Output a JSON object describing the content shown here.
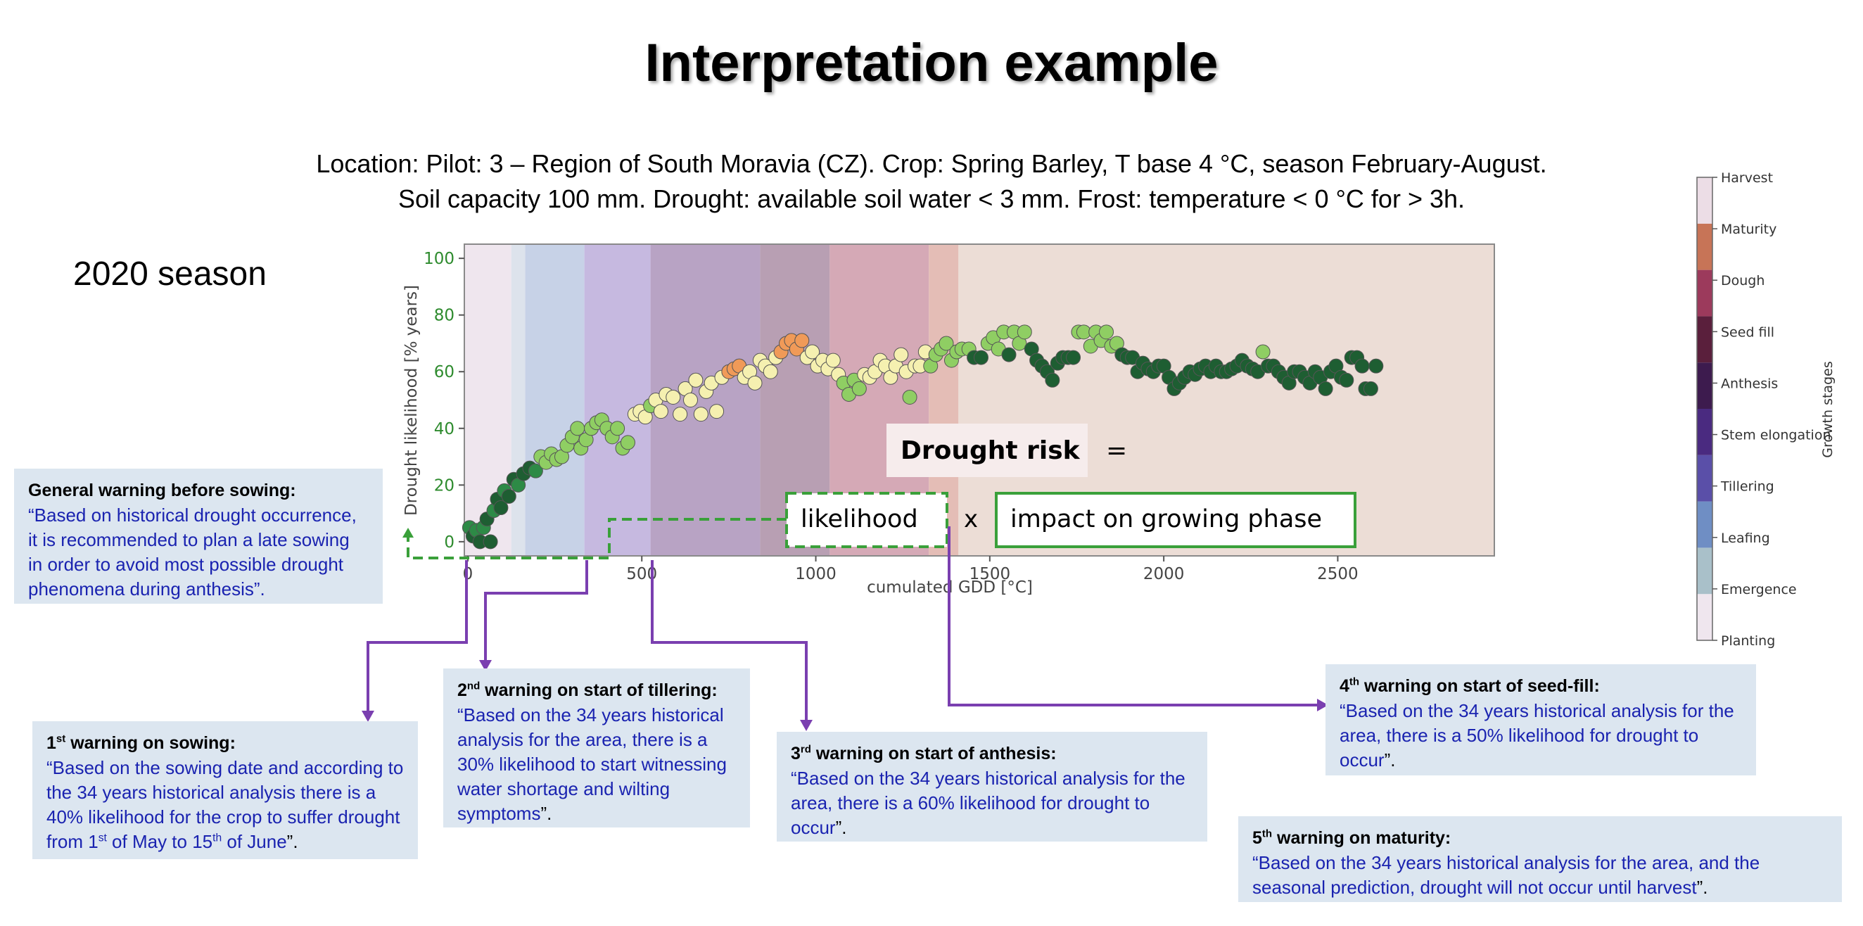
{
  "title": "Interpretation example",
  "subtitle_line1": "Location: Pilot: 3 – Region of South Moravia (CZ). Crop: Spring Barley, T base 4 °C, season February-August.",
  "subtitle_line2": "Soil capacity 100 mm. Drought: available soil water < 3 mm. Frost: temperature < 0 °C for > 3h.",
  "season_label": "2020 season",
  "formula": {
    "drought_risk": "Drought risk",
    "equals": "=",
    "likelihood": "likelihood",
    "times": "x",
    "impact": "impact on growing phase"
  },
  "warnings": {
    "general": {
      "header": "General warning before sowing:",
      "body": "“Based on historical drought occurrence, it is recommended to plan a late sowing in order to avoid most possible drought phenomena during anthesis”."
    },
    "w1": {
      "num": "1",
      "sup": "st",
      "header": " warning on sowing:",
      "body_a": "“Based on the sowing date and according to the 34 years historical analysis there is a 40% likelihood for the crop to suffer drought from 1",
      "sup_b": "st",
      "body_b": " of May to 15",
      "sup_c": "th",
      "body_c": " of June",
      "close": "”."
    },
    "w2": {
      "num": "2",
      "sup": "nd",
      "header": " warning on start of tillering:",
      "body": "“Based on the 34 years historical analysis for the area, there is a 30% likelihood to start witnessing water shortage and wilting symptoms",
      "close": "”."
    },
    "w3": {
      "num": "3",
      "sup": "rd",
      "header": " warning on start of anthesis:",
      "body": "“Based on the 34 years historical analysis for the area, there is a 60% likelihood for drought to occur",
      "close": "”."
    },
    "w4": {
      "num": "4",
      "sup": "th",
      "header": " warning on start of seed-fill:",
      "body": "“Based on the 34 years historical analysis for the area, there is a 50% likelihood for drought to occur",
      "close": "”."
    },
    "w5": {
      "num": "5",
      "sup": "th",
      "header": " warning on maturity:",
      "body": "“Based on the 34 years historical analysis for the area, and the seasonal prediction, drought will not occur until harvest",
      "close": "”."
    }
  },
  "colors": {
    "accent_purple": "#7a3fb0",
    "formula_green": "#3aa03a",
    "body_blue": "#1a23b0",
    "box_bg": "#dce6f0",
    "axis_green": "#2e8b2e"
  },
  "chart_data": {
    "type": "scatter",
    "xlabel": "cumulated GDD [°C]",
    "ylabel": "Drought likelihood [% years]",
    "xlim": [
      -10,
      2950
    ],
    "ylim": [
      -5,
      105
    ],
    "xticks": [
      0,
      500,
      1000,
      1500,
      2000,
      2500
    ],
    "yticks": [
      0,
      20,
      40,
      60,
      80,
      100
    ],
    "stage_bands": [
      {
        "x0": -10,
        "x1": 125,
        "color": "#efe6ee"
      },
      {
        "x0": 125,
        "x1": 165,
        "color": "#dde3ec"
      },
      {
        "x0": 165,
        "x1": 335,
        "color": "#c7d2e7"
      },
      {
        "x0": 335,
        "x1": 525,
        "color": "#c6b9e0"
      },
      {
        "x0": 525,
        "x1": 840,
        "color": "#b8a3c4"
      },
      {
        "x0": 840,
        "x1": 1040,
        "color": "#b89fb3"
      },
      {
        "x0": 1040,
        "x1": 1325,
        "color": "#d5a9b6"
      },
      {
        "x0": 1325,
        "x1": 1410,
        "color": "#e4bdb6"
      },
      {
        "x0": 1410,
        "x1": 2950,
        "color": "#ecddd6"
      }
    ],
    "point_colors": {
      "dark": "#1e5e32",
      "mid": "#2d8a46",
      "light": "#8fce63",
      "pale": "#f5f0b0",
      "orange": "#f09a58"
    },
    "points": [
      {
        "x": 5,
        "y": 5,
        "c": "mid"
      },
      {
        "x": 15,
        "y": 2,
        "c": "dark"
      },
      {
        "x": 25,
        "y": 4,
        "c": "mid"
      },
      {
        "x": 35,
        "y": 0,
        "c": "dark"
      },
      {
        "x": 45,
        "y": 5,
        "c": "mid"
      },
      {
        "x": 55,
        "y": 8,
        "c": "dark"
      },
      {
        "x": 65,
        "y": 0,
        "c": "dark"
      },
      {
        "x": 75,
        "y": 11,
        "c": "mid"
      },
      {
        "x": 85,
        "y": 15,
        "c": "dark"
      },
      {
        "x": 95,
        "y": 12,
        "c": "dark"
      },
      {
        "x": 105,
        "y": 18,
        "c": "mid"
      },
      {
        "x": 118,
        "y": 16,
        "c": "dark"
      },
      {
        "x": 132,
        "y": 22,
        "c": "dark"
      },
      {
        "x": 145,
        "y": 20,
        "c": "mid"
      },
      {
        "x": 160,
        "y": 24,
        "c": "dark"
      },
      {
        "x": 178,
        "y": 26,
        "c": "dark"
      },
      {
        "x": 195,
        "y": 25,
        "c": "mid"
      },
      {
        "x": 210,
        "y": 30,
        "c": "light"
      },
      {
        "x": 225,
        "y": 28,
        "c": "light"
      },
      {
        "x": 240,
        "y": 31,
        "c": "light"
      },
      {
        "x": 255,
        "y": 29,
        "c": "light"
      },
      {
        "x": 270,
        "y": 30,
        "c": "light"
      },
      {
        "x": 285,
        "y": 34,
        "c": "light"
      },
      {
        "x": 300,
        "y": 37,
        "c": "light"
      },
      {
        "x": 315,
        "y": 40,
        "c": "light"
      },
      {
        "x": 325,
        "y": 33,
        "c": "light"
      },
      {
        "x": 340,
        "y": 36,
        "c": "light"
      },
      {
        "x": 355,
        "y": 40,
        "c": "light"
      },
      {
        "x": 370,
        "y": 42,
        "c": "light"
      },
      {
        "x": 385,
        "y": 43,
        "c": "light"
      },
      {
        "x": 400,
        "y": 40,
        "c": "light"
      },
      {
        "x": 415,
        "y": 37,
        "c": "light"
      },
      {
        "x": 430,
        "y": 40,
        "c": "light"
      },
      {
        "x": 445,
        "y": 33,
        "c": "light"
      },
      {
        "x": 460,
        "y": 35,
        "c": "light"
      },
      {
        "x": 480,
        "y": 45,
        "c": "pale"
      },
      {
        "x": 495,
        "y": 46,
        "c": "pale"
      },
      {
        "x": 510,
        "y": 44,
        "c": "pale"
      },
      {
        "x": 525,
        "y": 48,
        "c": "light"
      },
      {
        "x": 540,
        "y": 50,
        "c": "pale"
      },
      {
        "x": 555,
        "y": 46,
        "c": "pale"
      },
      {
        "x": 570,
        "y": 52,
        "c": "pale"
      },
      {
        "x": 590,
        "y": 51,
        "c": "pale"
      },
      {
        "x": 610,
        "y": 45,
        "c": "pale"
      },
      {
        "x": 625,
        "y": 54,
        "c": "pale"
      },
      {
        "x": 640,
        "y": 50,
        "c": "pale"
      },
      {
        "x": 655,
        "y": 57,
        "c": "pale"
      },
      {
        "x": 670,
        "y": 45,
        "c": "pale"
      },
      {
        "x": 685,
        "y": 53,
        "c": "pale"
      },
      {
        "x": 700,
        "y": 56,
        "c": "pale"
      },
      {
        "x": 715,
        "y": 46,
        "c": "pale"
      },
      {
        "x": 730,
        "y": 58,
        "c": "pale"
      },
      {
        "x": 750,
        "y": 60,
        "c": "orange"
      },
      {
        "x": 765,
        "y": 61,
        "c": "orange"
      },
      {
        "x": 780,
        "y": 62,
        "c": "orange"
      },
      {
        "x": 795,
        "y": 58,
        "c": "pale"
      },
      {
        "x": 810,
        "y": 60,
        "c": "pale"
      },
      {
        "x": 825,
        "y": 56,
        "c": "pale"
      },
      {
        "x": 840,
        "y": 64,
        "c": "pale"
      },
      {
        "x": 855,
        "y": 62,
        "c": "pale"
      },
      {
        "x": 870,
        "y": 60,
        "c": "pale"
      },
      {
        "x": 885,
        "y": 65,
        "c": "pale"
      },
      {
        "x": 900,
        "y": 67,
        "c": "orange"
      },
      {
        "x": 915,
        "y": 70,
        "c": "orange"
      },
      {
        "x": 930,
        "y": 71,
        "c": "orange"
      },
      {
        "x": 945,
        "y": 68,
        "c": "orange"
      },
      {
        "x": 960,
        "y": 71,
        "c": "orange"
      },
      {
        "x": 975,
        "y": 65,
        "c": "pale"
      },
      {
        "x": 990,
        "y": 67,
        "c": "pale"
      },
      {
        "x": 1005,
        "y": 62,
        "c": "pale"
      },
      {
        "x": 1020,
        "y": 64,
        "c": "pale"
      },
      {
        "x": 1035,
        "y": 61,
        "c": "pale"
      },
      {
        "x": 1050,
        "y": 64,
        "c": "pale"
      },
      {
        "x": 1065,
        "y": 59,
        "c": "pale"
      },
      {
        "x": 1080,
        "y": 56,
        "c": "light"
      },
      {
        "x": 1095,
        "y": 52,
        "c": "light"
      },
      {
        "x": 1110,
        "y": 57,
        "c": "light"
      },
      {
        "x": 1125,
        "y": 54,
        "c": "light"
      },
      {
        "x": 1140,
        "y": 59,
        "c": "pale"
      },
      {
        "x": 1155,
        "y": 58,
        "c": "pale"
      },
      {
        "x": 1170,
        "y": 60,
        "c": "pale"
      },
      {
        "x": 1185,
        "y": 64,
        "c": "pale"
      },
      {
        "x": 1200,
        "y": 62,
        "c": "pale"
      },
      {
        "x": 1215,
        "y": 58,
        "c": "pale"
      },
      {
        "x": 1230,
        "y": 62,
        "c": "pale"
      },
      {
        "x": 1245,
        "y": 66,
        "c": "pale"
      },
      {
        "x": 1260,
        "y": 60,
        "c": "pale"
      },
      {
        "x": 1270,
        "y": 51,
        "c": "light"
      },
      {
        "x": 1285,
        "y": 62,
        "c": "pale"
      },
      {
        "x": 1300,
        "y": 62,
        "c": "pale"
      },
      {
        "x": 1315,
        "y": 67,
        "c": "pale"
      },
      {
        "x": 1330,
        "y": 62,
        "c": "light"
      },
      {
        "x": 1345,
        "y": 66,
        "c": "light"
      },
      {
        "x": 1360,
        "y": 68,
        "c": "light"
      },
      {
        "x": 1375,
        "y": 70,
        "c": "light"
      },
      {
        "x": 1390,
        "y": 64,
        "c": "light"
      },
      {
        "x": 1405,
        "y": 67,
        "c": "light"
      },
      {
        "x": 1420,
        "y": 68,
        "c": "light"
      },
      {
        "x": 1440,
        "y": 68,
        "c": "light"
      },
      {
        "x": 1455,
        "y": 65,
        "c": "dark"
      },
      {
        "x": 1475,
        "y": 65,
        "c": "dark"
      },
      {
        "x": 1495,
        "y": 70,
        "c": "light"
      },
      {
        "x": 1510,
        "y": 72,
        "c": "light"
      },
      {
        "x": 1525,
        "y": 68,
        "c": "light"
      },
      {
        "x": 1540,
        "y": 74,
        "c": "light"
      },
      {
        "x": 1555,
        "y": 66,
        "c": "dark"
      },
      {
        "x": 1570,
        "y": 74,
        "c": "light"
      },
      {
        "x": 1585,
        "y": 70,
        "c": "light"
      },
      {
        "x": 1600,
        "y": 74,
        "c": "light"
      },
      {
        "x": 1620,
        "y": 68,
        "c": "dark"
      },
      {
        "x": 1635,
        "y": 64,
        "c": "dark"
      },
      {
        "x": 1650,
        "y": 62,
        "c": "dark"
      },
      {
        "x": 1665,
        "y": 60,
        "c": "dark"
      },
      {
        "x": 1680,
        "y": 57,
        "c": "dark"
      },
      {
        "x": 1695,
        "y": 63,
        "c": "dark"
      },
      {
        "x": 1710,
        "y": 65,
        "c": "dark"
      },
      {
        "x": 1725,
        "y": 65,
        "c": "dark"
      },
      {
        "x": 1740,
        "y": 65,
        "c": "dark"
      },
      {
        "x": 1755,
        "y": 74,
        "c": "light"
      },
      {
        "x": 1770,
        "y": 74,
        "c": "light"
      },
      {
        "x": 1790,
        "y": 69,
        "c": "light"
      },
      {
        "x": 1805,
        "y": 74,
        "c": "light"
      },
      {
        "x": 1820,
        "y": 71,
        "c": "light"
      },
      {
        "x": 1835,
        "y": 74,
        "c": "light"
      },
      {
        "x": 1850,
        "y": 69,
        "c": "light"
      },
      {
        "x": 1865,
        "y": 70,
        "c": "light"
      },
      {
        "x": 1880,
        "y": 66,
        "c": "dark"
      },
      {
        "x": 1895,
        "y": 65,
        "c": "dark"
      },
      {
        "x": 1910,
        "y": 65,
        "c": "dark"
      },
      {
        "x": 1925,
        "y": 60,
        "c": "dark"
      },
      {
        "x": 1940,
        "y": 63,
        "c": "dark"
      },
      {
        "x": 1955,
        "y": 61,
        "c": "dark"
      },
      {
        "x": 1970,
        "y": 60,
        "c": "dark"
      },
      {
        "x": 1985,
        "y": 62,
        "c": "dark"
      },
      {
        "x": 2000,
        "y": 62,
        "c": "dark"
      },
      {
        "x": 2015,
        "y": 58,
        "c": "dark"
      },
      {
        "x": 2030,
        "y": 54,
        "c": "dark"
      },
      {
        "x": 2045,
        "y": 56,
        "c": "dark"
      },
      {
        "x": 2060,
        "y": 58,
        "c": "dark"
      },
      {
        "x": 2075,
        "y": 60,
        "c": "dark"
      },
      {
        "x": 2090,
        "y": 59,
        "c": "dark"
      },
      {
        "x": 2105,
        "y": 61,
        "c": "dark"
      },
      {
        "x": 2120,
        "y": 62,
        "c": "dark"
      },
      {
        "x": 2135,
        "y": 60,
        "c": "dark"
      },
      {
        "x": 2150,
        "y": 62,
        "c": "dark"
      },
      {
        "x": 2165,
        "y": 60,
        "c": "dark"
      },
      {
        "x": 2180,
        "y": 60,
        "c": "dark"
      },
      {
        "x": 2195,
        "y": 61,
        "c": "dark"
      },
      {
        "x": 2210,
        "y": 62,
        "c": "dark"
      },
      {
        "x": 2225,
        "y": 64,
        "c": "dark"
      },
      {
        "x": 2240,
        "y": 62,
        "c": "dark"
      },
      {
        "x": 2255,
        "y": 61,
        "c": "dark"
      },
      {
        "x": 2270,
        "y": 60,
        "c": "dark"
      },
      {
        "x": 2285,
        "y": 67,
        "c": "light"
      },
      {
        "x": 2300,
        "y": 62,
        "c": "dark"
      },
      {
        "x": 2315,
        "y": 62,
        "c": "dark"
      },
      {
        "x": 2330,
        "y": 60,
        "c": "dark"
      },
      {
        "x": 2345,
        "y": 58,
        "c": "dark"
      },
      {
        "x": 2360,
        "y": 56,
        "c": "dark"
      },
      {
        "x": 2375,
        "y": 60,
        "c": "dark"
      },
      {
        "x": 2390,
        "y": 60,
        "c": "dark"
      },
      {
        "x": 2405,
        "y": 58,
        "c": "dark"
      },
      {
        "x": 2420,
        "y": 56,
        "c": "dark"
      },
      {
        "x": 2435,
        "y": 60,
        "c": "dark"
      },
      {
        "x": 2450,
        "y": 58,
        "c": "dark"
      },
      {
        "x": 2465,
        "y": 54,
        "c": "dark"
      },
      {
        "x": 2480,
        "y": 60,
        "c": "dark"
      },
      {
        "x": 2495,
        "y": 62,
        "c": "dark"
      },
      {
        "x": 2510,
        "y": 58,
        "c": "dark"
      },
      {
        "x": 2525,
        "y": 57,
        "c": "dark"
      },
      {
        "x": 2540,
        "y": 65,
        "c": "dark"
      },
      {
        "x": 2555,
        "y": 65,
        "c": "dark"
      },
      {
        "x": 2570,
        "y": 62,
        "c": "dark"
      },
      {
        "x": 2580,
        "y": 54,
        "c": "dark"
      },
      {
        "x": 2595,
        "y": 54,
        "c": "dark"
      },
      {
        "x": 2610,
        "y": 62,
        "c": "dark"
      }
    ],
    "colorbar": {
      "label": "Growth stages",
      "stages": [
        {
          "name": "Planting",
          "color": "#efe6ee"
        },
        {
          "name": "Emergence",
          "color": "#a9c0c9"
        },
        {
          "name": "Leafing",
          "color": "#6f8ec4"
        },
        {
          "name": "Tillering",
          "color": "#5a4fa8"
        },
        {
          "name": "Stem elongation",
          "color": "#4a2a80"
        },
        {
          "name": "Anthesis",
          "color": "#3d1b4e"
        },
        {
          "name": "Seed fill",
          "color": "#5a1f3c"
        },
        {
          "name": "Dough",
          "color": "#9c3a5c"
        },
        {
          "name": "Maturity",
          "color": "#c77457"
        },
        {
          "name": "Harvest",
          "color": "#ecdde6"
        }
      ]
    }
  }
}
